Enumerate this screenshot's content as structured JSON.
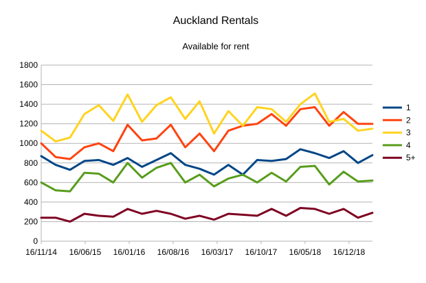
{
  "chart_data": {
    "type": "line",
    "title": "Auckland Rentals",
    "subtitle": "Available for rent",
    "xlabel": "",
    "ylabel": "",
    "ylim": [
      0,
      1800
    ],
    "yticks": [
      0,
      200,
      400,
      600,
      800,
      1000,
      1200,
      1400,
      1600,
      1800
    ],
    "xticks": [
      "16/11/14",
      "16/06/15",
      "16/01/16",
      "16/08/16",
      "16/03/17",
      "16/10/17",
      "16/05/18",
      "16/12/18"
    ],
    "grid": true,
    "legend_position": "right",
    "x": [
      "16/11/14",
      "16/02/15",
      "16/04/15",
      "16/06/15",
      "16/08/15",
      "16/10/15",
      "16/01/16",
      "16/03/16",
      "16/05/16",
      "16/08/16",
      "16/10/16",
      "16/12/16",
      "16/03/17",
      "16/05/17",
      "16/07/17",
      "16/10/17",
      "16/12/17",
      "16/02/18",
      "16/05/18",
      "16/07/18",
      "16/09/18",
      "16/12/18",
      "16/02/19",
      "16/04/19"
    ],
    "series": [
      {
        "name": "1",
        "color": "#004586",
        "values": [
          870,
          780,
          730,
          820,
          830,
          780,
          850,
          760,
          830,
          900,
          780,
          740,
          680,
          780,
          680,
          830,
          820,
          840,
          940,
          900,
          850,
          920,
          800,
          880
        ]
      },
      {
        "name": "2",
        "color": "#ff420e",
        "values": [
          1000,
          860,
          840,
          960,
          1000,
          920,
          1190,
          1030,
          1050,
          1190,
          960,
          1100,
          920,
          1130,
          1180,
          1200,
          1300,
          1180,
          1350,
          1370,
          1180,
          1320,
          1200,
          1200
        ]
      },
      {
        "name": "3",
        "color": "#ffd320",
        "values": [
          1130,
          1020,
          1060,
          1300,
          1390,
          1230,
          1500,
          1220,
          1390,
          1470,
          1250,
          1430,
          1100,
          1330,
          1180,
          1370,
          1350,
          1220,
          1400,
          1510,
          1220,
          1250,
          1130,
          1150
        ]
      },
      {
        "name": "4",
        "color": "#579d1c",
        "values": [
          600,
          520,
          510,
          700,
          690,
          600,
          800,
          650,
          750,
          800,
          600,
          680,
          560,
          640,
          680,
          600,
          700,
          610,
          760,
          770,
          580,
          710,
          610,
          620
        ]
      },
      {
        "name": "5+",
        "color": "#7e0021",
        "values": [
          240,
          240,
          200,
          280,
          260,
          250,
          330,
          280,
          310,
          280,
          230,
          260,
          220,
          280,
          270,
          260,
          330,
          260,
          340,
          330,
          280,
          330,
          240,
          290
        ]
      }
    ]
  }
}
